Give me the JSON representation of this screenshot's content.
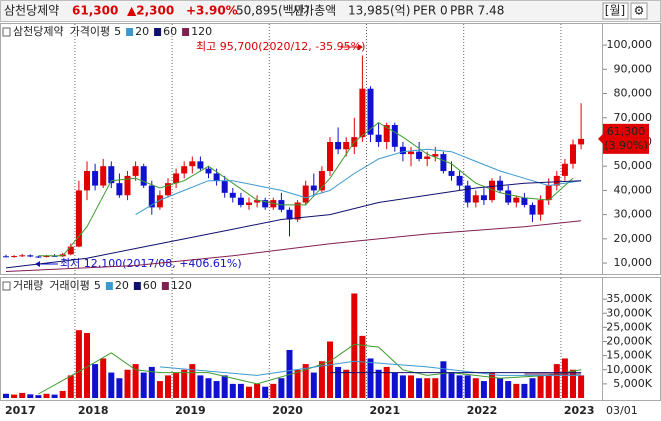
{
  "header": {
    "name": "삼천당제약",
    "price": "61,300",
    "change": "▲2,300",
    "change_pct": "+3.90%",
    "trade_value": "50,895(백만)",
    "market_cap_label": "시가총액",
    "market_cap": "13,985(억)",
    "per": "PER 0",
    "pbr": "PBR 7.48",
    "period": "[월]",
    "settings": "⚙"
  },
  "chart_data": [
    {
      "type": "candlestick",
      "title": "삼천당제약",
      "ma_label": "가격이평",
      "up_color": "#e00000",
      "down_color": "#1010d0",
      "annotations": {
        "high": "최고 95,700(2020/12, -35.95%)",
        "low": "최저 12,100(2017/08, +406.61%)"
      },
      "last_change": "(3.90%)",
      "x": [
        "2017/04",
        "2017/05",
        "2017/06",
        "2017/07",
        "2017/08",
        "2017/09",
        "2017/10",
        "2017/11",
        "2017/12",
        "2018/01",
        "2018/02",
        "2018/03",
        "2018/04",
        "2018/05",
        "2018/06",
        "2018/07",
        "2018/08",
        "2018/09",
        "2018/10",
        "2018/11",
        "2018/12",
        "2019/01",
        "2019/02",
        "2019/03",
        "2019/04",
        "2019/05",
        "2019/06",
        "2019/07",
        "2019/08",
        "2019/09",
        "2019/10",
        "2019/11",
        "2019/12",
        "2020/01",
        "2020/02",
        "2020/03",
        "2020/04",
        "2020/05",
        "2020/06",
        "2020/07",
        "2020/08",
        "2020/09",
        "2020/10",
        "2020/11",
        "2020/12",
        "2021/01",
        "2021/02",
        "2021/03",
        "2021/04",
        "2021/05",
        "2021/06",
        "2021/07",
        "2021/08",
        "2021/09",
        "2021/10",
        "2021/11",
        "2021/12",
        "2022/01",
        "2022/02",
        "2022/03",
        "2022/04",
        "2022/05",
        "2022/06",
        "2022/07",
        "2022/08",
        "2022/09",
        "2022/10",
        "2022/11",
        "2022/12",
        "2023/01",
        "2023/02",
        "2023/03"
      ],
      "open": [
        12800,
        12600,
        12900,
        13200,
        12700,
        12500,
        13000,
        12800,
        13600,
        16800,
        40000,
        48000,
        42000,
        50000,
        43000,
        38000,
        46000,
        50000,
        42000,
        33000,
        38000,
        43000,
        47000,
        50000,
        52000,
        49000,
        47000,
        44000,
        39000,
        37000,
        34000,
        35000,
        36000,
        33000,
        36000,
        32000,
        28000,
        35000,
        42000,
        40000,
        48000,
        60000,
        57000,
        58000,
        62000,
        82000,
        63000,
        60000,
        67000,
        58000,
        55000,
        56000,
        53000,
        54000,
        55000,
        48000,
        46000,
        42000,
        35000,
        38000,
        36000,
        44000,
        40000,
        35000,
        37000,
        34000,
        30000,
        36000,
        42000,
        46000,
        51000,
        59000
      ],
      "high": [
        13500,
        13300,
        13800,
        13600,
        13000,
        13400,
        13700,
        14200,
        18000,
        44000,
        52000,
        51000,
        53000,
        52000,
        47000,
        48000,
        52000,
        51000,
        44000,
        40000,
        45000,
        49000,
        52000,
        54000,
        54000,
        50000,
        49000,
        46000,
        41000,
        39000,
        37000,
        38000,
        37000,
        37000,
        39000,
        33000,
        36000,
        44000,
        47000,
        50000,
        62000,
        66000,
        62000,
        70000,
        95700,
        83000,
        68000,
        68000,
        68000,
        60000,
        58000,
        60000,
        56000,
        58000,
        56000,
        52000,
        48000,
        44000,
        40000,
        41000,
        45000,
        46000,
        42000,
        38000,
        39000,
        35000,
        38000,
        45000,
        48000,
        53000,
        61000,
        76000
      ],
      "low": [
        12300,
        12200,
        12500,
        12400,
        12100,
        12300,
        12600,
        12500,
        13200,
        16500,
        36000,
        40000,
        41000,
        41000,
        37000,
        36000,
        44000,
        41000,
        30000,
        32000,
        37000,
        41000,
        45000,
        47000,
        48000,
        45000,
        42000,
        37000,
        35000,
        33000,
        32000,
        33000,
        32000,
        32000,
        31000,
        21000,
        27000,
        34000,
        38000,
        39000,
        46000,
        55000,
        54000,
        55000,
        60000,
        60000,
        58000,
        57000,
        56000,
        52000,
        50000,
        52000,
        50000,
        52000,
        47000,
        44000,
        40000,
        33000,
        33000,
        34000,
        35000,
        39000,
        34000,
        33000,
        33000,
        27000,
        27500,
        34000,
        40000,
        44000,
        49000,
        57000
      ],
      "close": [
        12600,
        12900,
        13200,
        12700,
        12500,
        13000,
        12800,
        13600,
        16800,
        40000,
        48000,
        42000,
        50000,
        43000,
        38000,
        46000,
        50000,
        42000,
        33000,
        38000,
        43000,
        47000,
        50000,
        52000,
        49000,
        47000,
        44000,
        39000,
        37000,
        34000,
        35000,
        36000,
        33000,
        36000,
        32000,
        28000,
        35000,
        42000,
        40000,
        48000,
        60000,
        57000,
        60000,
        62000,
        82000,
        63000,
        60000,
        67000,
        58000,
        55000,
        56000,
        53000,
        54000,
        55000,
        48000,
        46000,
        42000,
        35000,
        38000,
        36000,
        44000,
        40000,
        35000,
        37000,
        34000,
        30000,
        36000,
        42000,
        46000,
        51000,
        59000,
        61300
      ],
      "ylim": [
        5900,
        105000
      ],
      "yticks": [
        {
          "value": 10000,
          "label": "10,000"
        },
        {
          "value": 20000,
          "label": "20,000"
        },
        {
          "value": 30000,
          "label": "30,000"
        },
        {
          "value": 40000,
          "label": "40,000"
        },
        {
          "value": 50000,
          "label": "50,000"
        },
        {
          "value": 60000,
          "label": "60,000"
        },
        {
          "value": 70000,
          "label": "70,000"
        },
        {
          "value": 80000,
          "label": "80,000"
        },
        {
          "value": 90000,
          "label": "90,000"
        },
        {
          "value": 100000,
          "label": "100,000"
        }
      ],
      "series": [
        {
          "name": "5",
          "color": "#3c9c2c",
          "x": [
            "2017/08",
            "2017/11",
            "2018/02",
            "2018/05",
            "2018/08",
            "2018/11",
            "2019/02",
            "2019/05",
            "2019/08",
            "2019/11",
            "2020/02",
            "2020/05",
            "2020/08",
            "2020/11",
            "2021/02",
            "2021/05",
            "2021/08",
            "2021/11",
            "2022/02",
            "2022/05",
            "2022/08",
            "2022/11",
            "2023/02"
          ],
          "values": [
            13000,
            13000,
            25000,
            44000,
            45000,
            41000,
            44000,
            50000,
            43000,
            36000,
            34000,
            34000,
            45000,
            60000,
            68000,
            62000,
            55000,
            51000,
            43000,
            39000,
            37000,
            36000,
            45000
          ]
        },
        {
          "name": "20",
          "color": "#3a9ad0",
          "x": [
            "2018/08",
            "2018/11",
            "2019/02",
            "2019/05",
            "2019/08",
            "2019/11",
            "2020/02",
            "2020/05",
            "2020/08",
            "2020/11",
            "2021/02",
            "2021/05",
            "2021/08",
            "2021/11",
            "2022/02",
            "2022/05",
            "2022/08",
            "2022/11",
            "2023/03"
          ],
          "values": [
            30000,
            36000,
            40000,
            44000,
            44000,
            42000,
            40000,
            37000,
            40000,
            47000,
            53000,
            56000,
            57000,
            56000,
            52000,
            48000,
            45000,
            42000,
            44000
          ]
        },
        {
          "name": "60",
          "color": "#101070",
          "x": [
            "2017/04",
            "2018/02",
            "2018/08",
            "2019/02",
            "2019/08",
            "2020/02",
            "2020/08",
            "2021/02",
            "2021/08",
            "2022/02",
            "2022/08",
            "2023/03"
          ],
          "values": [
            8000,
            12000,
            16000,
            20000,
            24000,
            28000,
            30000,
            35000,
            38000,
            41000,
            43000,
            44000
          ]
        },
        {
          "name": "120",
          "color": "#802050",
          "x": [
            "2017/04",
            "2018/08",
            "2019/08",
            "2020/08",
            "2021/08",
            "2022/08",
            "2023/03"
          ],
          "values": [
            6500,
            9000,
            13000,
            18000,
            22000,
            25000,
            27500
          ]
        }
      ]
    },
    {
      "type": "bar",
      "title": "거래량",
      "ma_label": "거래이평",
      "date_label": "03/01",
      "values": [
        1500,
        1200,
        1800,
        1300,
        1000,
        1500,
        1200,
        2500,
        8000,
        24000,
        23000,
        12000,
        14000,
        9000,
        7000,
        10000,
        12000,
        9000,
        11000,
        6000,
        8000,
        9000,
        10000,
        12000,
        8000,
        7000,
        6000,
        8000,
        5000,
        5000,
        4000,
        5000,
        4000,
        5000,
        7000,
        17000,
        10000,
        12000,
        9000,
        13000,
        20000,
        11000,
        10000,
        37000,
        22000,
        14000,
        10000,
        11000,
        9000,
        8000,
        8000,
        7000,
        7000,
        7000,
        13000,
        9000,
        8000,
        8000,
        7000,
        6000,
        9000,
        7000,
        6000,
        5000,
        5000,
        7000,
        8000,
        8000,
        12000,
        14000,
        10000,
        8000
      ],
      "ylim": [
        0,
        40000
      ],
      "yticks": [
        {
          "value": 5000,
          "label": "5,000K"
        },
        {
          "value": 10000,
          "label": "10,000K"
        },
        {
          "value": 15000,
          "label": "15,000K"
        },
        {
          "value": 20000,
          "label": "20,000K"
        },
        {
          "value": 25000,
          "label": "25,000K"
        },
        {
          "value": 30000,
          "label": "30,000K"
        },
        {
          "value": 35000,
          "label": "35,000K"
        }
      ],
      "xticks": [
        {
          "value": "2017/04",
          "label": "2017"
        },
        {
          "value": "2018/01",
          "label": "2018"
        },
        {
          "value": "2019/01",
          "label": "2019"
        },
        {
          "value": "2020/01",
          "label": "2020"
        },
        {
          "value": "2021/01",
          "label": "2021"
        },
        {
          "value": "2022/01",
          "label": "2022"
        },
        {
          "value": "2023/01",
          "label": "2023"
        }
      ],
      "series": [
        {
          "name": "5",
          "color": "#3c9c2c",
          "x": [
            "2017/08",
            "2018/02",
            "2018/05",
            "2018/08",
            "2018/11",
            "2019/05",
            "2019/11",
            "2020/05",
            "2020/08",
            "2020/11",
            "2021/02",
            "2021/05",
            "2021/08",
            "2021/11",
            "2022/05",
            "2022/11",
            "2023/03"
          ],
          "values": [
            1400,
            11000,
            16000,
            10000,
            9000,
            9000,
            5000,
            10000,
            13000,
            19000,
            18000,
            10000,
            8000,
            9000,
            7000,
            8000,
            10000
          ]
        },
        {
          "name": "20",
          "color": "#3a9ad0",
          "x": [
            "2018/11",
            "2019/11",
            "2020/11",
            "2021/08",
            "2022/05",
            "2023/03"
          ],
          "values": [
            11000,
            8000,
            13000,
            11000,
            8000,
            8000
          ]
        },
        {
          "name": "60",
          "color": "#101070",
          "x": [
            "2020/08",
            "2022/08",
            "2023/03"
          ],
          "values": [
            9000,
            9000,
            9000
          ]
        },
        {
          "name": "120",
          "color": "#802050",
          "x": [
            "2022/08",
            "2023/03"
          ],
          "values": [
            8500,
            8500
          ]
        }
      ]
    }
  ]
}
